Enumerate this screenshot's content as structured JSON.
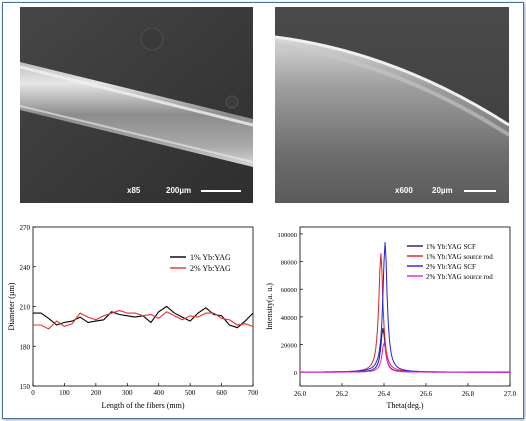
{
  "panels": {
    "sem_left": {
      "magnification": "x85",
      "scale_label": "200µm"
    },
    "sem_right": {
      "magnification": "x600",
      "scale_label": "20µm"
    }
  },
  "chart_data": [
    {
      "type": "line",
      "xlabel": "Length of the fibers (mm)",
      "ylabel": "Diameter (µm)",
      "xlim": [
        0,
        700
      ],
      "ylim": [
        150,
        270
      ],
      "xticks": [
        0,
        100,
        200,
        300,
        400,
        500,
        600,
        700
      ],
      "yticks": [
        150,
        180,
        210,
        240,
        270
      ],
      "legend_position": "top-right",
      "series": [
        {
          "name": "1% Yb:YAG",
          "color": "#000000",
          "x": [
            0,
            25,
            50,
            75,
            100,
            125,
            150,
            175,
            200,
            225,
            250,
            275,
            300,
            325,
            350,
            375,
            400,
            425,
            450,
            475,
            500,
            525,
            550,
            575,
            600,
            625,
            650,
            675,
            700
          ],
          "y": [
            205,
            205,
            201,
            196,
            198,
            199,
            202,
            198,
            199,
            200,
            206,
            204,
            203,
            202,
            203,
            198,
            206,
            210,
            205,
            202,
            199,
            205,
            209,
            204,
            203,
            196,
            194,
            199,
            205
          ]
        },
        {
          "name": "2% Yb:YAG",
          "color": "#e8322a",
          "x": [
            0,
            25,
            50,
            75,
            100,
            125,
            150,
            175,
            200,
            225,
            250,
            275,
            300,
            325,
            350,
            375,
            400,
            425,
            450,
            475,
            500,
            525,
            550,
            575,
            600,
            625,
            650,
            675,
            700
          ],
          "y": [
            196,
            196,
            193,
            199,
            195,
            197,
            205,
            202,
            200,
            203,
            205,
            207,
            205,
            205,
            203,
            204,
            201,
            206,
            203,
            200,
            203,
            202,
            205,
            205,
            201,
            200,
            196,
            197,
            195
          ]
        }
      ]
    },
    {
      "type": "line",
      "xlabel": "Theta(deg.)",
      "ylabel": "Intensity(a. u.)",
      "xlim": [
        26.0,
        27.0
      ],
      "ylim": [
        -10000,
        105000
      ],
      "xticks": [
        "26.0",
        "26.2",
        "26.4",
        "26.6",
        "26.8",
        "27.0"
      ],
      "yticks": [
        0,
        20000,
        40000,
        60000,
        80000,
        100000
      ],
      "legend_position": "top-right",
      "series": [
        {
          "name": "1% Yb:YAG SCF",
          "color": "#1a1a6e",
          "center": 26.395,
          "peak": 32000
        },
        {
          "name": "1% Yb:YAG source rod",
          "color": "#e02020",
          "center": 26.385,
          "peak": 86000
        },
        {
          "name": "2% Yb:YAG SCF",
          "color": "#2020e0",
          "center": 26.405,
          "peak": 94000
        },
        {
          "name": "2% Yb:YAG source rod",
          "color": "#e020e0",
          "center": 26.4,
          "peak": 21000
        }
      ]
    }
  ]
}
